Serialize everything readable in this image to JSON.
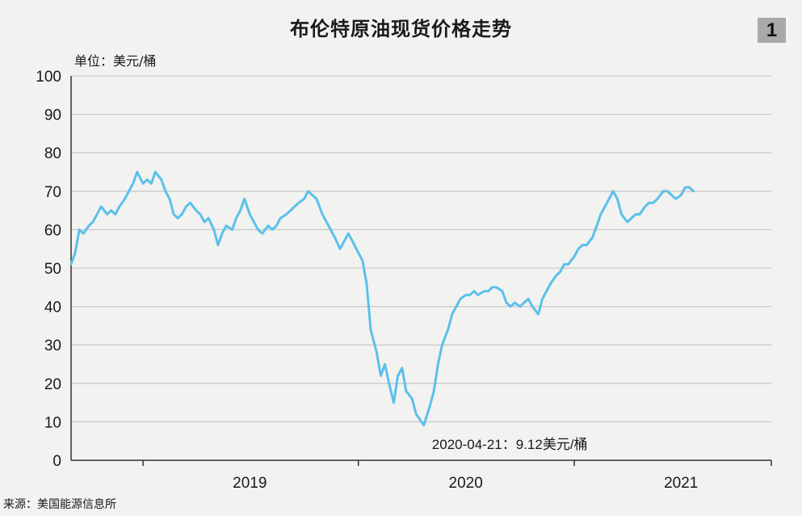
{
  "page": {
    "title": "布伦特原油现货价格走势",
    "badge": "1",
    "unit_label": "单位：美元/桶",
    "source": "来源：美国能源信息所"
  },
  "chart_data": {
    "type": "line",
    "title": "布伦特原油现货价格走势",
    "ylabel": "单位：美元/桶",
    "ylim": [
      0,
      100
    ],
    "yticks": [
      0,
      10,
      20,
      30,
      40,
      50,
      60,
      70,
      80,
      90,
      100
    ],
    "xlim": [
      "2018-09",
      "2021-12"
    ],
    "xticks": [
      {
        "value": "2019",
        "label": "2019"
      },
      {
        "value": "2020",
        "label": "2020"
      },
      {
        "value": "2021",
        "label": "2021"
      }
    ],
    "color": "#5bc0eb",
    "grid": true,
    "annotation": {
      "date": "2020-04-21",
      "value": 9.12,
      "text": "2020-04-21：9.12美元/桶"
    },
    "series": [
      {
        "points": [
          [
            "2018-09-01",
            51
          ],
          [
            "2018-09-08",
            54
          ],
          [
            "2018-09-15",
            60
          ],
          [
            "2018-09-22",
            59
          ],
          [
            "2018-10-01",
            61
          ],
          [
            "2018-10-08",
            62
          ],
          [
            "2018-10-15",
            64
          ],
          [
            "2018-10-22",
            66
          ],
          [
            "2018-11-01",
            64
          ],
          [
            "2018-11-08",
            65
          ],
          [
            "2018-11-15",
            64
          ],
          [
            "2018-11-22",
            66
          ],
          [
            "2018-12-01",
            68
          ],
          [
            "2018-12-08",
            70
          ],
          [
            "2018-12-15",
            72
          ],
          [
            "2018-12-22",
            75
          ],
          [
            "2019-01-01",
            72
          ],
          [
            "2019-01-08",
            73
          ],
          [
            "2019-01-15",
            72
          ],
          [
            "2019-01-22",
            75
          ],
          [
            "2019-02-01",
            73
          ],
          [
            "2019-02-08",
            70
          ],
          [
            "2019-02-15",
            68
          ],
          [
            "2019-02-22",
            64
          ],
          [
            "2019-03-01",
            63
          ],
          [
            "2019-03-08",
            64
          ],
          [
            "2019-03-15",
            66
          ],
          [
            "2019-03-22",
            67
          ],
          [
            "2019-04-01",
            65
          ],
          [
            "2019-04-08",
            64
          ],
          [
            "2019-04-15",
            62
          ],
          [
            "2019-04-22",
            63
          ],
          [
            "2019-05-01",
            60
          ],
          [
            "2019-05-08",
            56
          ],
          [
            "2019-05-15",
            59
          ],
          [
            "2019-05-22",
            61
          ],
          [
            "2019-06-01",
            60
          ],
          [
            "2019-06-08",
            63
          ],
          [
            "2019-06-15",
            65
          ],
          [
            "2019-06-22",
            68
          ],
          [
            "2019-07-01",
            64
          ],
          [
            "2019-07-08",
            62
          ],
          [
            "2019-07-15",
            60
          ],
          [
            "2019-07-22",
            59
          ],
          [
            "2019-08-01",
            61
          ],
          [
            "2019-08-08",
            60
          ],
          [
            "2019-08-15",
            61
          ],
          [
            "2019-08-22",
            63
          ],
          [
            "2019-09-01",
            64
          ],
          [
            "2019-09-08",
            65
          ],
          [
            "2019-09-15",
            66
          ],
          [
            "2019-09-22",
            67
          ],
          [
            "2019-10-01",
            68
          ],
          [
            "2019-10-08",
            70
          ],
          [
            "2019-10-15",
            69
          ],
          [
            "2019-10-22",
            68
          ],
          [
            "2019-11-01",
            64
          ],
          [
            "2019-11-08",
            62
          ],
          [
            "2019-11-15",
            60
          ],
          [
            "2019-11-22",
            58
          ],
          [
            "2019-12-01",
            55
          ],
          [
            "2019-12-08",
            57
          ],
          [
            "2019-12-15",
            59
          ],
          [
            "2019-12-22",
            57
          ],
          [
            "2020-01-01",
            54
          ],
          [
            "2020-01-08",
            52
          ],
          [
            "2020-01-15",
            46
          ],
          [
            "2020-01-22",
            34
          ],
          [
            "2020-02-01",
            28
          ],
          [
            "2020-02-08",
            22
          ],
          [
            "2020-02-15",
            25
          ],
          [
            "2020-02-22",
            20
          ],
          [
            "2020-03-01",
            15
          ],
          [
            "2020-03-08",
            22
          ],
          [
            "2020-03-15",
            24
          ],
          [
            "2020-03-22",
            18
          ],
          [
            "2020-04-01",
            16
          ],
          [
            "2020-04-08",
            12
          ],
          [
            "2020-04-21",
            9.12
          ],
          [
            "2020-05-01",
            14
          ],
          [
            "2020-05-08",
            18
          ],
          [
            "2020-05-15",
            25
          ],
          [
            "2020-05-22",
            30
          ],
          [
            "2020-06-01",
            34
          ],
          [
            "2020-06-08",
            38
          ],
          [
            "2020-06-15",
            40
          ],
          [
            "2020-06-22",
            42
          ],
          [
            "2020-07-01",
            43
          ],
          [
            "2020-07-08",
            43
          ],
          [
            "2020-07-15",
            44
          ],
          [
            "2020-07-22",
            43
          ],
          [
            "2020-08-01",
            44
          ],
          [
            "2020-08-08",
            44
          ],
          [
            "2020-08-15",
            45
          ],
          [
            "2020-08-22",
            45
          ],
          [
            "2020-09-01",
            44
          ],
          [
            "2020-09-08",
            41
          ],
          [
            "2020-09-15",
            40
          ],
          [
            "2020-09-22",
            41
          ],
          [
            "2020-10-01",
            40
          ],
          [
            "2020-10-08",
            41
          ],
          [
            "2020-10-15",
            42
          ],
          [
            "2020-10-22",
            40
          ],
          [
            "2020-11-01",
            38
          ],
          [
            "2020-11-08",
            42
          ],
          [
            "2020-11-15",
            44
          ],
          [
            "2020-11-22",
            46
          ],
          [
            "2020-12-01",
            48
          ],
          [
            "2020-12-08",
            49
          ],
          [
            "2020-12-15",
            51
          ],
          [
            "2020-12-22",
            51
          ],
          [
            "2021-01-01",
            53
          ],
          [
            "2021-01-08",
            55
          ],
          [
            "2021-01-15",
            56
          ],
          [
            "2021-01-22",
            56
          ],
          [
            "2021-02-01",
            58
          ],
          [
            "2021-02-08",
            61
          ],
          [
            "2021-02-15",
            64
          ],
          [
            "2021-02-22",
            66
          ],
          [
            "2021-03-01",
            68
          ],
          [
            "2021-03-08",
            70
          ],
          [
            "2021-03-15",
            68
          ],
          [
            "2021-03-22",
            64
          ],
          [
            "2021-04-01",
            62
          ],
          [
            "2021-04-08",
            63
          ],
          [
            "2021-04-15",
            64
          ],
          [
            "2021-04-22",
            64
          ],
          [
            "2021-05-01",
            66
          ],
          [
            "2021-05-08",
            67
          ],
          [
            "2021-05-15",
            67
          ],
          [
            "2021-05-22",
            68
          ],
          [
            "2021-06-01",
            70
          ],
          [
            "2021-06-08",
            70
          ],
          [
            "2021-06-15",
            69
          ],
          [
            "2021-06-22",
            68
          ],
          [
            "2021-07-01",
            69
          ],
          [
            "2021-07-08",
            71
          ],
          [
            "2021-07-15",
            71
          ],
          [
            "2021-07-22",
            70
          ]
        ]
      }
    ]
  }
}
